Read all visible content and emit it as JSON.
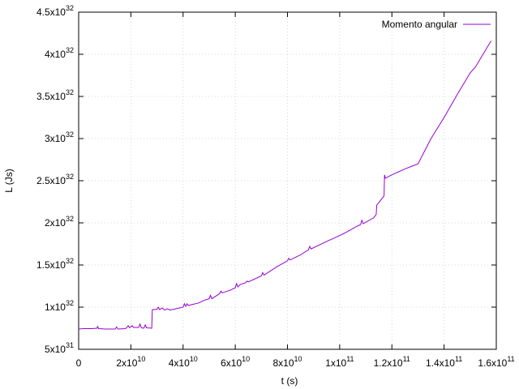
{
  "chart_data": {
    "type": "line",
    "title": "",
    "xlabel": "t (s)",
    "ylabel": "L (Js)",
    "xlim": [
      0,
      160000000000.0
    ],
    "ylim": [
      5e+31,
      4.5e+32
    ],
    "grid": true,
    "legend_position": "top-right",
    "x_ticks": [
      {
        "value": 0,
        "mant": "0",
        "exp": ""
      },
      {
        "value": 20000000000.0,
        "mant": "2x10",
        "exp": "10"
      },
      {
        "value": 40000000000.0,
        "mant": "4x10",
        "exp": "10"
      },
      {
        "value": 60000000000.0,
        "mant": "6x10",
        "exp": "10"
      },
      {
        "value": 80000000000.0,
        "mant": "8x10",
        "exp": "10"
      },
      {
        "value": 100000000000.0,
        "mant": "1x10",
        "exp": "11"
      },
      {
        "value": 120000000000.0,
        "mant": "1.2x10",
        "exp": "11"
      },
      {
        "value": 140000000000.0,
        "mant": "1.4x10",
        "exp": "11"
      },
      {
        "value": 160000000000.0,
        "mant": "1.6x10",
        "exp": "11"
      }
    ],
    "y_ticks": [
      {
        "value": 5e+31,
        "mant": "5x10",
        "exp": "31"
      },
      {
        "value": 1e+32,
        "mant": "1x10",
        "exp": "32"
      },
      {
        "value": 1.5e+32,
        "mant": "1.5x10",
        "exp": "32"
      },
      {
        "value": 2e+32,
        "mant": "2x10",
        "exp": "32"
      },
      {
        "value": 2.5e+32,
        "mant": "2.5x10",
        "exp": "32"
      },
      {
        "value": 3e+32,
        "mant": "3x10",
        "exp": "32"
      },
      {
        "value": 3.5e+32,
        "mant": "3.5x10",
        "exp": "32"
      },
      {
        "value": 4e+32,
        "mant": "4x10",
        "exp": "32"
      },
      {
        "value": 4.5e+32,
        "mant": "4.5x10",
        "exp": "32"
      }
    ],
    "series": [
      {
        "name": "Momento angular",
        "color": "#9400d3",
        "points": [
          [
            0,
            7.4e+31
          ],
          [
            2000000000.0,
            7.45e+31
          ],
          [
            5000000000.0,
            7.45e+31
          ],
          [
            7000000000.0,
            7.5e+31
          ],
          [
            7300000000.0,
            7.7e+31
          ],
          [
            7600000000.0,
            7.45e+31
          ],
          [
            10000000000.0,
            7.4e+31
          ],
          [
            14000000000.0,
            7.4e+31
          ],
          [
            14500000000.0,
            7.65e+31
          ],
          [
            15000000000.0,
            7.4e+31
          ],
          [
            18000000000.0,
            7.45e+31
          ],
          [
            19000000000.0,
            7.8e+31
          ],
          [
            19500000000.0,
            7.55e+31
          ],
          [
            20500000000.0,
            7.8e+31
          ],
          [
            21000000000.0,
            7.6e+31
          ],
          [
            23000000000.0,
            7.6e+31
          ],
          [
            23500000000.0,
            8e+31
          ],
          [
            24000000000.0,
            7.55e+31
          ],
          [
            25000000000.0,
            7.5e+31
          ],
          [
            25500000000.0,
            7.9e+31
          ],
          [
            26000000000.0,
            7.55e+31
          ],
          [
            28000000000.0,
            7.5e+31
          ],
          [
            28200000000.0,
            9.7e+31
          ],
          [
            30000000000.0,
            9.75e+31
          ],
          [
            30500000000.0,
            1e+32
          ],
          [
            31000000000.0,
            9.7e+31
          ],
          [
            32000000000.0,
            9.9e+31
          ],
          [
            33000000000.0,
            9.65e+31
          ],
          [
            34000000000.0,
            9.8e+31
          ],
          [
            35000000000.0,
            9.65e+31
          ],
          [
            40000000000.0,
            1e+32
          ],
          [
            40500000000.0,
            1.04e+32
          ],
          [
            41000000000.0,
            1.01e+32
          ],
          [
            41500000000.0,
            1.04e+32
          ],
          [
            42000000000.0,
            1.02e+32
          ],
          [
            46000000000.0,
            1.05e+32
          ],
          [
            48000000000.0,
            1.08e+32
          ],
          [
            50000000000.0,
            1.1e+32
          ],
          [
            50500000000.0,
            1.14e+32
          ],
          [
            51000000000.0,
            1.1e+32
          ],
          [
            54000000000.0,
            1.16e+32
          ],
          [
            54500000000.0,
            1.19e+32
          ],
          [
            55000000000.0,
            1.17e+32
          ],
          [
            58000000000.0,
            1.2e+32
          ],
          [
            60000000000.0,
            1.23e+32
          ],
          [
            60500000000.0,
            1.28e+32
          ],
          [
            61000000000.0,
            1.24e+32
          ],
          [
            62000000000.0,
            1.27e+32
          ],
          [
            64000000000.0,
            1.29e+32
          ],
          [
            64500000000.0,
            1.31e+32
          ],
          [
            65000000000.0,
            1.3e+32
          ],
          [
            70000000000.0,
            1.37e+32
          ],
          [
            70500000000.0,
            1.41e+32
          ],
          [
            71000000000.0,
            1.38e+32
          ],
          [
            76000000000.0,
            1.48e+32
          ],
          [
            80000000000.0,
            1.55e+32
          ],
          [
            80500000000.0,
            1.58e+32
          ],
          [
            81000000000.0,
            1.56e+32
          ],
          [
            85000000000.0,
            1.62e+32
          ],
          [
            88000000000.0,
            1.68e+32
          ],
          [
            88500000000.0,
            1.72e+32
          ],
          [
            89000000000.0,
            1.69e+32
          ],
          [
            95000000000.0,
            1.78e+32
          ],
          [
            100000000000.0,
            1.85e+32
          ],
          [
            102000000000.0,
            1.88e+32
          ],
          [
            106000000000.0,
            1.95e+32
          ],
          [
            108000000000.0,
            1.98e+32
          ],
          [
            108500000000.0,
            2.03e+32
          ],
          [
            109000000000.0,
            1.99e+32
          ],
          [
            113000000000.0,
            2.06e+32
          ],
          [
            114000000000.0,
            2.1e+32
          ],
          [
            114200000000.0,
            2.21e+32
          ],
          [
            117000000000.0,
            2.32e+32
          ],
          [
            117200000000.0,
            2.57e+32
          ],
          [
            117500000000.0,
            2.53e+32
          ],
          [
            120000000000.0,
            2.57e+32
          ],
          [
            125000000000.0,
            2.64e+32
          ],
          [
            130000000000.0,
            2.7e+32
          ],
          [
            135000000000.0,
            3e+32
          ],
          [
            140000000000.0,
            3.25e+32
          ],
          [
            145000000000.0,
            3.52e+32
          ],
          [
            150000000000.0,
            3.78e+32
          ],
          [
            152000000000.0,
            3.85e+32
          ],
          [
            158000000000.0,
            4.16e+32
          ]
        ]
      }
    ]
  }
}
